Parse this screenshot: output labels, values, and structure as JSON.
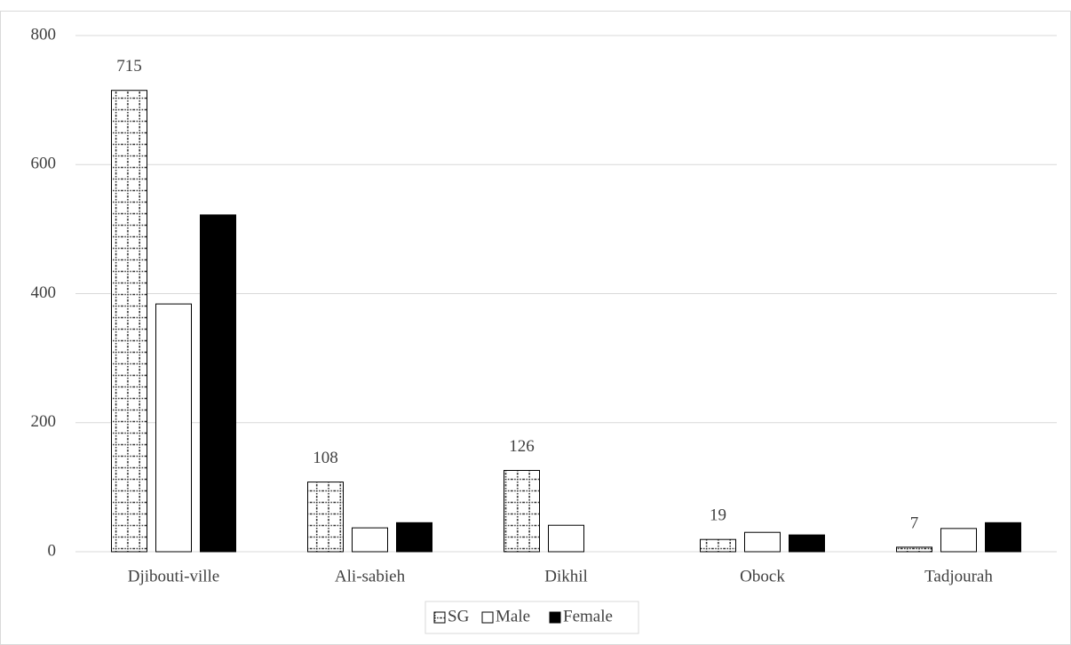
{
  "chart_data": {
    "type": "bar",
    "categories": [
      "Djibouti-ville",
      "Ali-sabieh",
      "Dikhil",
      "Obock",
      "Tadjourah"
    ],
    "series": [
      {
        "name": "SG",
        "color": "#ffffff",
        "pattern": "dotted-grid",
        "values": [
          715,
          108,
          126,
          19,
          7
        ],
        "show_labels": true
      },
      {
        "name": "Male",
        "color": "#ffffff",
        "values": [
          384,
          37,
          41,
          30,
          36
        ]
      },
      {
        "name": "Female",
        "color": "#000000",
        "values": [
          522,
          45,
          null,
          26,
          45
        ]
      }
    ],
    "ylim": [
      0,
      800
    ],
    "yticks": [
      0,
      200,
      400,
      600,
      800
    ],
    "grid": true,
    "legend": "bottom"
  }
}
